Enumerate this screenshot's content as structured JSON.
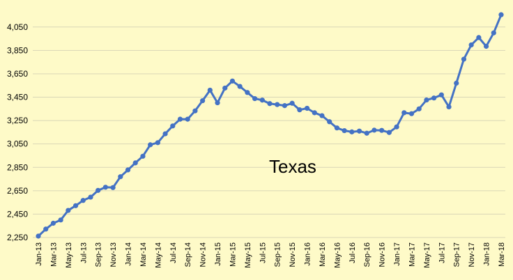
{
  "chart_data": {
    "type": "line",
    "title": "",
    "xlabel": "",
    "ylabel": "",
    "annotation": "Texas",
    "grid": true,
    "legend": "none",
    "ylim": [
      2250,
      4150
    ],
    "yticks": [
      2250,
      2450,
      2650,
      2850,
      3050,
      3250,
      3450,
      3650,
      3850,
      4050
    ],
    "ytick_labels": [
      "2,250",
      "2,450",
      "2,650",
      "2,850",
      "3,050",
      "3,250",
      "3,450",
      "3,650",
      "3,850",
      "4,050"
    ],
    "series_color": "#4472c4",
    "background_color": "#fefac8",
    "x": [
      "Jan-13",
      "Feb-13",
      "Mar-13",
      "Apr-13",
      "May-13",
      "Jun-13",
      "Jul-13",
      "Aug-13",
      "Sep-13",
      "Oct-13",
      "Nov-13",
      "Dec-13",
      "Jan-14",
      "Feb-14",
      "Mar-14",
      "Apr-14",
      "May-14",
      "Jun-14",
      "Jul-14",
      "Aug-14",
      "Sep-14",
      "Oct-14",
      "Nov-14",
      "Dec-14",
      "Jan-15",
      "Feb-15",
      "Mar-15",
      "Apr-15",
      "May-15",
      "Jun-15",
      "Jul-15",
      "Aug-15",
      "Sep-15",
      "Oct-15",
      "Nov-15",
      "Dec-15",
      "Jan-16",
      "Feb-16",
      "Mar-16",
      "Apr-16",
      "May-16",
      "Jun-16",
      "Jul-16",
      "Aug-16",
      "Sep-16",
      "Oct-16",
      "Nov-16",
      "Dec-16",
      "Jan-17",
      "Feb-17",
      "Mar-17",
      "Apr-17",
      "May-17",
      "Jun-17",
      "Jul-17",
      "Aug-17",
      "Sep-17",
      "Oct-17",
      "Nov-17",
      "Dec-17",
      "Jan-18",
      "Feb-18",
      "Mar-18"
    ],
    "xtick_labels": [
      "Jan-13",
      "Mar-13",
      "May-13",
      "Jul-13",
      "Sep-13",
      "Nov-13",
      "Jan-14",
      "Mar-14",
      "May-14",
      "Jul-14",
      "Sep-14",
      "Nov-14",
      "Jan-15",
      "Mar-15",
      "May-15",
      "Jul-15",
      "Sep-15",
      "Nov-15",
      "Jan-16",
      "Mar-16",
      "May-16",
      "Jul-16",
      "Sep-16",
      "Nov-16",
      "Jan-17",
      "Mar-17",
      "May-17",
      "Jul-17",
      "Sep-17",
      "Nov-17",
      "Jan-18",
      "Mar-18"
    ],
    "series": [
      {
        "values": [
          2262,
          2322,
          2372,
          2400,
          2482,
          2522,
          2567,
          2595,
          2653,
          2680,
          2677,
          2770,
          2828,
          2888,
          2945,
          3043,
          3061,
          3137,
          3204,
          3262,
          3262,
          3333,
          3420,
          3510,
          3402,
          3528,
          3588,
          3542,
          3490,
          3438,
          3425,
          3395,
          3387,
          3378,
          3398,
          3342,
          3355,
          3317,
          3292,
          3240,
          3187,
          3164,
          3153,
          3160,
          3142,
          3168,
          3166,
          3148,
          3196,
          3317,
          3309,
          3350,
          3426,
          3443,
          3470,
          3367,
          3570,
          3775,
          3897,
          3960,
          3885,
          4000,
          4155
        ]
      }
    ]
  }
}
